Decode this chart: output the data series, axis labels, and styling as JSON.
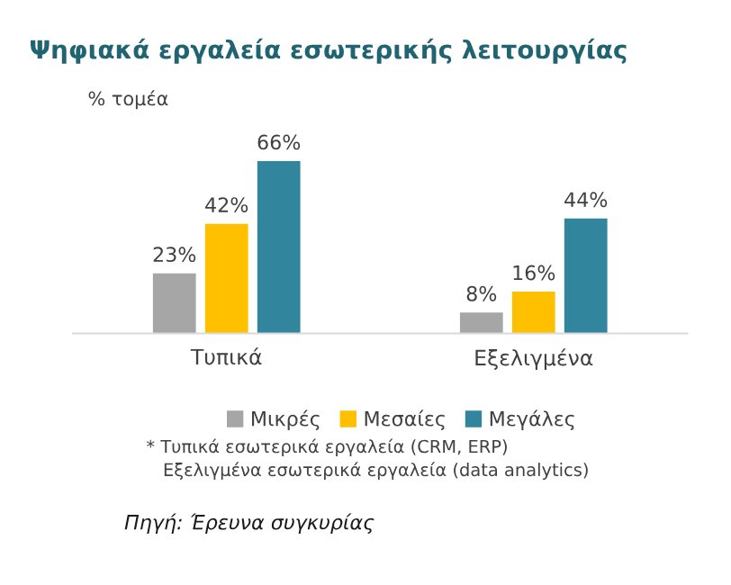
{
  "chart_data": {
    "type": "bar",
    "title": "Ψηφιακά εργαλεία εσωτερικής λειτουργίας",
    "ylabel": "% τομέα",
    "categories": [
      "Τυπικά",
      "Εξελιγμένα"
    ],
    "series": [
      {
        "name": "Μικρές",
        "color": "#a6a6a6",
        "values": [
          23,
          8
        ],
        "value_labels": [
          "23%",
          "8%"
        ]
      },
      {
        "name": "Μεσαίες",
        "color": "#ffc000",
        "values": [
          42,
          16
        ],
        "value_labels": [
          "42%",
          "16%"
        ]
      },
      {
        "name": "Μεγάλες",
        "color": "#31859c",
        "values": [
          66,
          44
        ],
        "value_labels": [
          "66%",
          "44%"
        ]
      }
    ],
    "legend": "bottom",
    "annotations": [
      "* Τυπικά εσωτερικά εργαλεία (CRM, ERP)\n   Εξελιγμένα εσωτερικά εργαλεία (data analytics)",
      "Πηγή: Έρευνα συγκυρίας"
    ]
  }
}
